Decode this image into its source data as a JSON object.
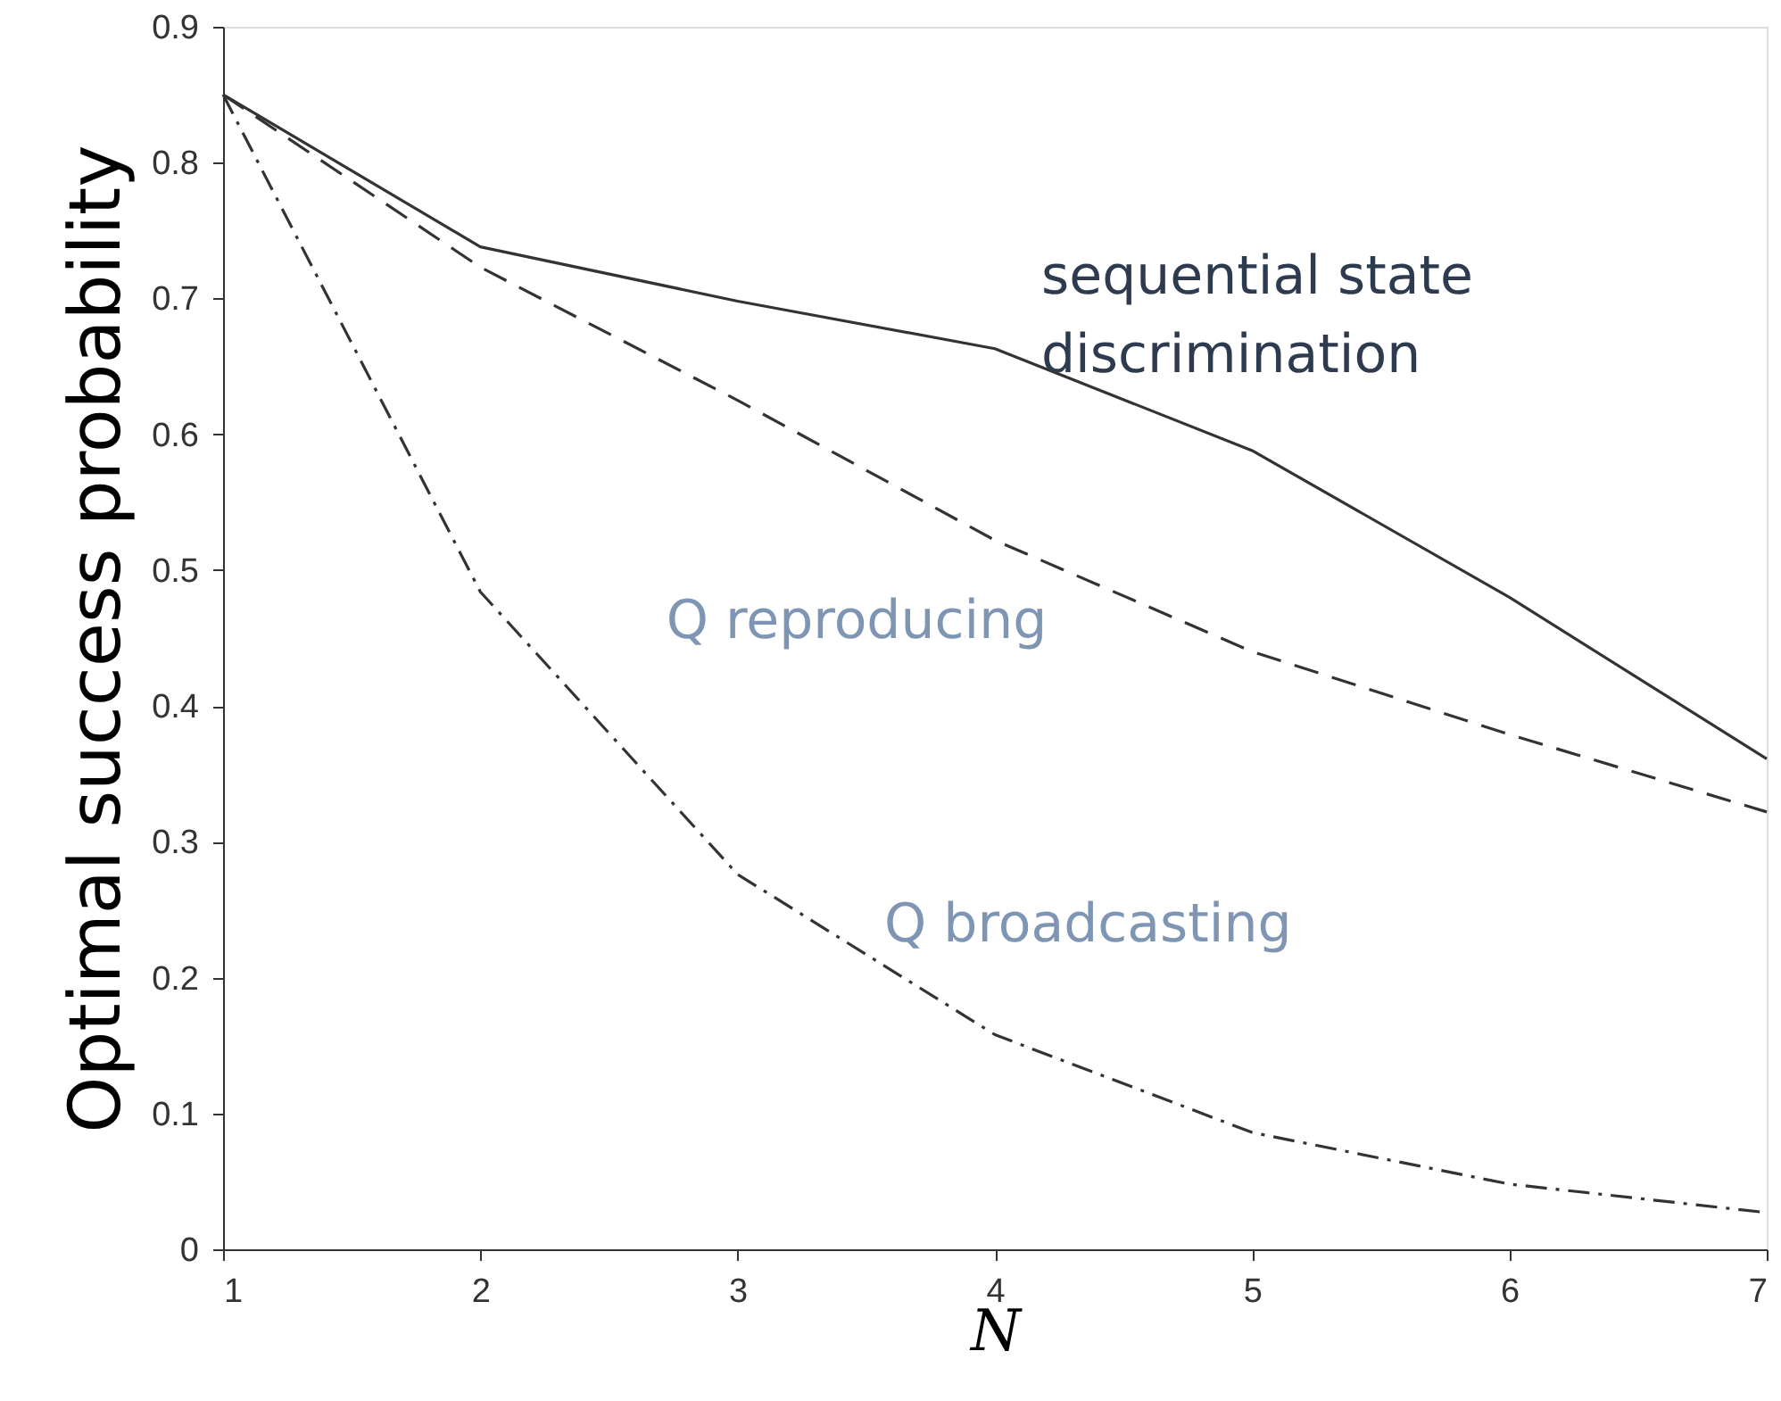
{
  "chart_data": {
    "type": "line",
    "xlabel": "N",
    "ylabel": "Optimal success probability",
    "x": [
      1,
      2,
      3,
      4,
      5,
      6,
      7
    ],
    "series": [
      {
        "name": "sequential state\ndiscrimination",
        "color": "#333333",
        "line_style": "solid",
        "values": [
          0.85,
          0.738,
          0.698,
          0.663,
          0.588,
          0.48,
          0.361
        ]
      },
      {
        "name": "Q reproducing",
        "color": "#333333",
        "line_style": "dashed",
        "values": [
          0.85,
          0.723,
          0.625,
          0.522,
          0.44,
          0.379,
          0.322
        ]
      },
      {
        "name": "Q broadcasting",
        "color": "#333333",
        "line_style": "dashdot",
        "values": [
          0.85,
          0.484,
          0.276,
          0.158,
          0.086,
          0.048,
          0.027
        ]
      }
    ],
    "xlim": [
      1,
      7
    ],
    "xticks": [
      1,
      2,
      3,
      4,
      5,
      6,
      7
    ],
    "ylim": [
      0,
      0.9
    ],
    "yticks": [
      0,
      0.1,
      0.2,
      0.3,
      0.4,
      0.5,
      0.6,
      0.7,
      0.8,
      0.9
    ],
    "grid": false,
    "marker": "none"
  }
}
